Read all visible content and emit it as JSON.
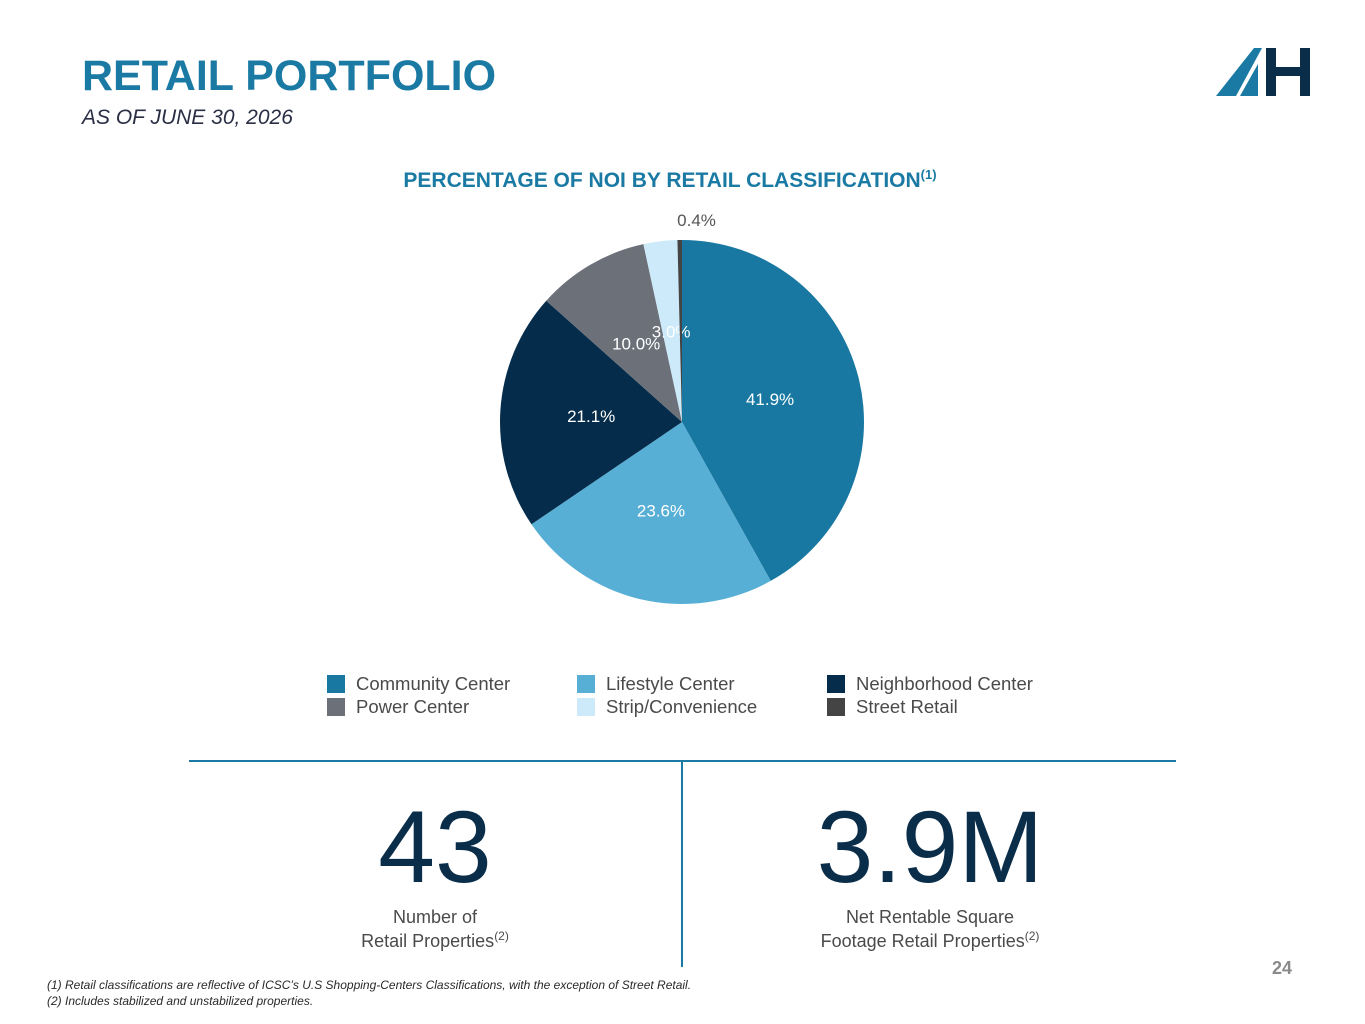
{
  "header": {
    "title": "RETAIL PORTFOLIO",
    "subtitle": "AS OF JUNE 30, 2026"
  },
  "logo": {
    "name": "ah-logo-icon",
    "colors": [
      "#1a7aa3",
      "#0a2d4a"
    ]
  },
  "chart_title": "PERCENTAGE OF NOI BY RETAIL CLASSIFICATION",
  "chart_title_sup": "(1)",
  "chart_data": {
    "type": "pie",
    "title": "PERCENTAGE OF NOI BY RETAIL CLASSIFICATION(1)",
    "slices": [
      {
        "label": "Community Center",
        "value": 41.9,
        "display": "41.9%",
        "color": "#1878a2"
      },
      {
        "label": "Lifestyle Center",
        "value": 23.6,
        "display": "23.6%",
        "color": "#58afd6"
      },
      {
        "label": "Neighborhood Center",
        "value": 21.1,
        "display": "21.1%",
        "color": "#052c4a"
      },
      {
        "label": "Power Center",
        "value": 10.0,
        "display": "10.0%",
        "color": "#6b7079"
      },
      {
        "label": "Strip/Convenience",
        "value": 3.0,
        "display": "3.0%",
        "color": "#cdeafa"
      },
      {
        "label": "Street Retail",
        "value": 0.4,
        "display": "0.4%",
        "color": "#444444"
      }
    ],
    "start_angle_deg": 0,
    "direction": "clockwise",
    "legend_position": "bottom"
  },
  "legend": [
    {
      "label": "Community Center",
      "color": "#1878a2"
    },
    {
      "label": "Lifestyle Center",
      "color": "#58afd6"
    },
    {
      "label": "Neighborhood Center",
      "color": "#052c4a"
    },
    {
      "label": "Power Center",
      "color": "#6b7079"
    },
    {
      "label": "Strip/Convenience",
      "color": "#cdeafa"
    },
    {
      "label": "Street Retail",
      "color": "#444444"
    }
  ],
  "stats": [
    {
      "value": "43",
      "label_line1": "Number of",
      "label_line2": "Retail Properties",
      "sup": "(2)"
    },
    {
      "value": "3.9M",
      "label_line1": "Net Rentable Square",
      "label_line2": "Footage Retail Properties",
      "sup": "(2)"
    }
  ],
  "page_number": "24",
  "footnotes": [
    "(1) Retail classifications are reflective of ICSC’s U.S Shopping-Centers Classifications, with the exception of Street Retail.",
    "(2) Includes stabilized and unstabilized properties."
  ]
}
